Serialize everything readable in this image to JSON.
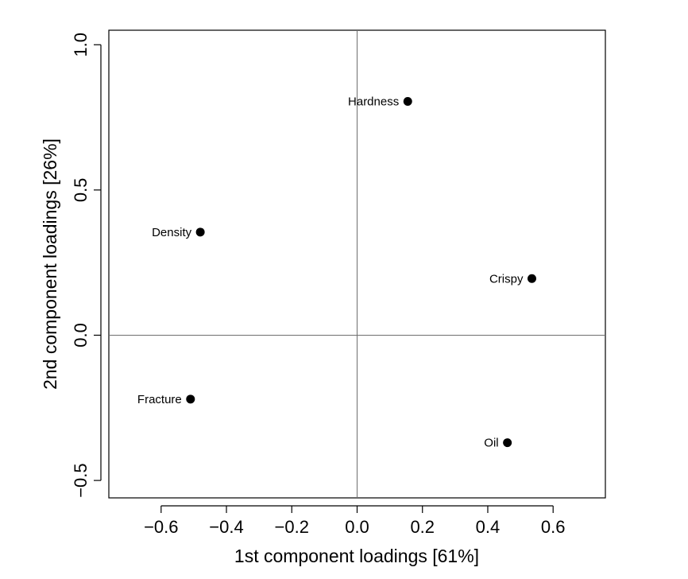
{
  "chart_data": {
    "type": "scatter",
    "xlabel": "1st component loadings [61%]",
    "ylabel": "2nd component loadings [26%]",
    "xlim": [
      -0.76,
      0.76
    ],
    "ylim": [
      -0.56,
      1.05
    ],
    "x_ticks": [
      -0.6,
      -0.4,
      -0.2,
      0.0,
      0.2,
      0.4,
      0.6
    ],
    "x_tick_labels": [
      "−0.6",
      "−0.4",
      "−0.2",
      "0.0",
      "0.2",
      "0.4",
      "0.6"
    ],
    "y_ticks": [
      -0.5,
      0.0,
      0.5,
      1.0
    ],
    "y_tick_labels": [
      "−0.5",
      "0.0",
      "0.5",
      "1.0"
    ],
    "reference_lines": {
      "x": 0,
      "y": 0
    },
    "grid": false,
    "legend": "none",
    "points": [
      {
        "label": "Hardness",
        "x": 0.155,
        "y": 0.805
      },
      {
        "label": "Density",
        "x": -0.48,
        "y": 0.355
      },
      {
        "label": "Crispy",
        "x": 0.535,
        "y": 0.195
      },
      {
        "label": "Fracture",
        "x": -0.51,
        "y": -0.22
      },
      {
        "label": "Oil",
        "x": 0.46,
        "y": -0.37
      }
    ],
    "colors": {
      "point": "#000000",
      "axis": "#000000",
      "reference_line": "#6e6e6e"
    }
  }
}
